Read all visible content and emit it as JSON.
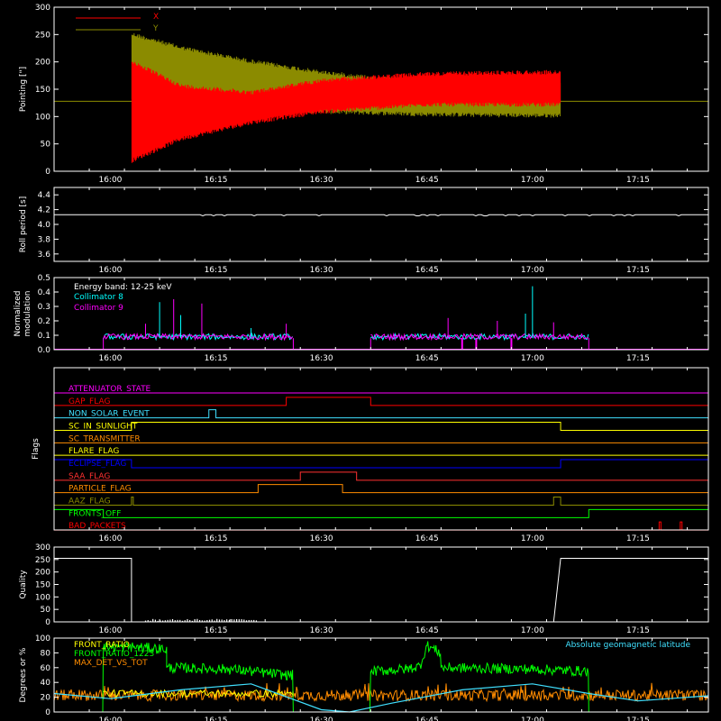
{
  "colors": {
    "background": "#000000",
    "axes": "#ffffff",
    "red": "#ff0000",
    "olive": "#8b8b00",
    "cyan": "#00ffff",
    "magenta": "#ff00ff",
    "white": "#ffffff",
    "green": "#00ff00",
    "orange": "#ff8c00",
    "yellow": "#ffff00",
    "blue": "#0000ff",
    "lightblue": "#40e0ff"
  },
  "time_axis": {
    "start": "15:52",
    "end": "17:25",
    "ticks": [
      "16:00",
      "16:15",
      "16:30",
      "16:45",
      "17:00",
      "17:15"
    ]
  },
  "chart_data": [
    {
      "id": "pointing",
      "type": "line",
      "ylabel": "Pointing [\"]",
      "ylim": [
        0,
        300
      ],
      "yticks": [
        "0",
        "50",
        "100",
        "150",
        "200",
        "250",
        "300"
      ],
      "series": [
        {
          "name": "X",
          "color": "#ff0000",
          "envelope": [
            {
              "t": "15:52",
              "lo": 128,
              "hi": 128
            },
            {
              "t": "16:03",
              "lo": 128,
              "hi": 128
            },
            {
              "t": "16:03",
              "lo": 15,
              "hi": 205
            },
            {
              "t": "16:10",
              "lo": 55,
              "hi": 160
            },
            {
              "t": "16:20",
              "lo": 85,
              "hi": 148
            },
            {
              "t": "16:30",
              "lo": 105,
              "hi": 170
            },
            {
              "t": "16:45",
              "lo": 118,
              "hi": 182
            },
            {
              "t": "17:00",
              "lo": 118,
              "hi": 185
            },
            {
              "t": "17:04",
              "lo": 118,
              "hi": 185
            },
            {
              "t": "17:04",
              "lo": 128,
              "hi": 128
            },
            {
              "t": "17:25",
              "lo": 128,
              "hi": 128
            }
          ]
        },
        {
          "name": "Y",
          "color": "#8b8b00",
          "envelope": [
            {
              "t": "15:52",
              "lo": 128,
              "hi": 128
            },
            {
              "t": "16:03",
              "lo": 128,
              "hi": 128
            },
            {
              "t": "16:03",
              "lo": 130,
              "hi": 255
            },
            {
              "t": "16:10",
              "lo": 120,
              "hi": 230
            },
            {
              "t": "16:20",
              "lo": 110,
              "hi": 205
            },
            {
              "t": "16:30",
              "lo": 105,
              "hi": 185
            },
            {
              "t": "16:45",
              "lo": 100,
              "hi": 165
            },
            {
              "t": "17:00",
              "lo": 98,
              "hi": 168
            },
            {
              "t": "17:04",
              "lo": 98,
              "hi": 168
            },
            {
              "t": "17:04",
              "lo": 128,
              "hi": 128
            },
            {
              "t": "17:25",
              "lo": 128,
              "hi": 128
            }
          ]
        }
      ],
      "legend": [
        "X",
        "Y"
      ]
    },
    {
      "id": "roll",
      "type": "line",
      "ylabel": "Roll period [s]",
      "ylim": [
        3.5,
        4.5
      ],
      "yticks": [
        "3.6",
        "3.8",
        "4.0",
        "4.2",
        "4.4"
      ],
      "series": [
        {
          "name": "",
          "color": "#ffffff",
          "value": 4.13
        }
      ]
    },
    {
      "id": "modulation",
      "type": "line",
      "ylabel": "Normalized modulation",
      "ylim": [
        0,
        0.5
      ],
      "yticks": [
        "0.0",
        "0.1",
        "0.2",
        "0.3",
        "0.4",
        "0.5"
      ],
      "legend_title": "Energy band: 12-25 keV",
      "series": [
        {
          "name": "Collimator 8",
          "color": "#00ffff"
        },
        {
          "name": "Collimator 9",
          "color": "#ff00ff"
        }
      ],
      "active_intervals": [
        [
          "15:59",
          "16:26"
        ],
        [
          "16:37",
          "17:08"
        ]
      ],
      "spikes": [
        {
          "t": "16:05",
          "v": 0.18,
          "c": "#ff00ff"
        },
        {
          "t": "16:07",
          "v": 0.33,
          "c": "#00ffff"
        },
        {
          "t": "16:09",
          "v": 0.35,
          "c": "#ff00ff"
        },
        {
          "t": "16:10",
          "v": 0.24,
          "c": "#00ffff"
        },
        {
          "t": "16:13",
          "v": 0.32,
          "c": "#ff00ff"
        },
        {
          "t": "16:20",
          "v": 0.15,
          "c": "#00ffff"
        },
        {
          "t": "16:25",
          "v": 0.18,
          "c": "#ff00ff"
        },
        {
          "t": "16:48",
          "v": 0.22,
          "c": "#ff00ff"
        },
        {
          "t": "16:55",
          "v": 0.2,
          "c": "#ff00ff"
        },
        {
          "t": "16:59",
          "v": 0.25,
          "c": "#00ffff"
        },
        {
          "t": "17:00",
          "v": 0.44,
          "c": "#00ffff"
        },
        {
          "t": "17:03",
          "v": 0.19,
          "c": "#ff00ff"
        }
      ],
      "dips": [
        "16:50",
        "16:52",
        "16:57"
      ]
    },
    {
      "id": "flags",
      "type": "step",
      "ylabel": "Flags",
      "rows": [
        {
          "name": "ATTENUATOR_STATE",
          "color": "#ff00ff",
          "high": []
        },
        {
          "name": "SAA_FLAG",
          "color": "#ff0000",
          "high": [
            [
              "16:25",
              "16:37"
            ]
          ],
          "label_override": "GAP_FLAG"
        },
        {
          "name": "NON_SOLAR_EVENT",
          "color": "#40e0ff",
          "high": [
            [
              "16:14",
              "16:15"
            ]
          ]
        },
        {
          "name": "SC_IN_SUNLIGHT",
          "color": "#ffff00",
          "high": [
            [
              "16:03",
              "17:04"
            ]
          ]
        },
        {
          "name": "SC_TRANSMITTER",
          "color": "#ff8c00",
          "high": []
        },
        {
          "name": "FLARE_FLAG",
          "color": "#ffff00",
          "high": []
        },
        {
          "name": "ECLIPSE_FLAG",
          "color": "#0000ff",
          "high": [
            [
              "15:52",
              "16:03"
            ],
            [
              "17:04",
              "17:25"
            ]
          ]
        },
        {
          "name": "SAA_FLAG",
          "color": "#ff3030",
          "high": [
            [
              "16:27",
              "16:35"
            ]
          ]
        },
        {
          "name": "PARTICLE_FLAG",
          "color": "#ff8c00",
          "high": [
            [
              "16:21",
              "16:33"
            ]
          ]
        },
        {
          "name": "AAZ_FLAG",
          "color": "#8b8b00",
          "high": [
            [
              "16:03",
              "16:03"
            ],
            [
              "17:03",
              "17:04"
            ]
          ]
        },
        {
          "name": "FRONTS_OFF",
          "color": "#00ff00",
          "high": [
            [
              "15:52",
              "15:59"
            ],
            [
              "17:08",
              "17:25"
            ]
          ]
        },
        {
          "name": "BAD_PACKETS",
          "color": "#ff0000",
          "high": [
            [
              "17:18",
              "17:18"
            ],
            [
              "17:21",
              "17:21"
            ]
          ]
        }
      ],
      "labels": [
        "ATTENUATOR_STATE",
        "GAP_FLAG",
        "NON_SOLAR_EVENT",
        "SC_IN_SUNLIGHT",
        "SC_TRANSMITTER",
        "FLARE_FLAG",
        "ECLIPSE_FLAG",
        "SAA_FLAG",
        "PARTICLE_FLAG",
        "AAZ_FLAG",
        "FRONTS_OFF",
        "BAD_PACKETS"
      ]
    },
    {
      "id": "quality",
      "type": "line",
      "ylabel": "Quality",
      "ylim": [
        0,
        300
      ],
      "yticks": [
        "0",
        "50",
        "100",
        "150",
        "200",
        "250",
        "300"
      ],
      "series": [
        {
          "name": "",
          "color": "#ffffff",
          "points": [
            [
              "15:52",
              255
            ],
            [
              "16:03",
              255
            ],
            [
              "16:03",
              0
            ],
            [
              "17:03",
              0
            ],
            [
              "17:04",
              255
            ],
            [
              "17:25",
              255
            ]
          ]
        }
      ]
    },
    {
      "id": "ratios",
      "type": "line",
      "ylabel": "Degrees or %",
      "ylim": [
        0,
        100
      ],
      "yticks": [
        "0",
        "20",
        "40",
        "60",
        "80",
        "100"
      ],
      "series": [
        {
          "name": "FRONT_RATIO",
          "color": "#ffff00"
        },
        {
          "name": "FRONT_RATIO_1223",
          "color": "#00ff00"
        },
        {
          "name": "MAX_DET_VS_TOT",
          "color": "#ff8c00"
        },
        {
          "name": "Absolute geomagnetic latitude",
          "color": "#40e0ff"
        }
      ],
      "green_levels": [
        [
          "15:52",
          0
        ],
        [
          "15:59",
          0
        ],
        [
          "15:59",
          88
        ],
        [
          "16:03",
          88
        ],
        [
          "16:08",
          85
        ],
        [
          "16:08",
          60
        ],
        [
          "16:17",
          58
        ],
        [
          "16:25",
          50
        ],
        [
          "16:26",
          50
        ],
        [
          "16:26",
          0
        ],
        [
          "16:37",
          0
        ],
        [
          "16:37",
          55
        ],
        [
          "16:42",
          58
        ],
        [
          "16:44",
          62
        ],
        [
          "16:45",
          90
        ],
        [
          "16:47",
          80
        ],
        [
          "16:47",
          60
        ],
        [
          "17:00",
          58
        ],
        [
          "17:08",
          55
        ],
        [
          "17:08",
          0
        ],
        [
          "17:25",
          0
        ]
      ],
      "latitude": [
        [
          "15:52",
          25
        ],
        [
          "16:00",
          18
        ],
        [
          "16:10",
          30
        ],
        [
          "16:20",
          38
        ],
        [
          "16:30",
          3
        ],
        [
          "16:34",
          0
        ],
        [
          "16:40",
          12
        ],
        [
          "16:50",
          30
        ],
        [
          "17:00",
          38
        ],
        [
          "17:08",
          25
        ],
        [
          "17:15",
          15
        ],
        [
          "17:25",
          22
        ]
      ]
    }
  ]
}
